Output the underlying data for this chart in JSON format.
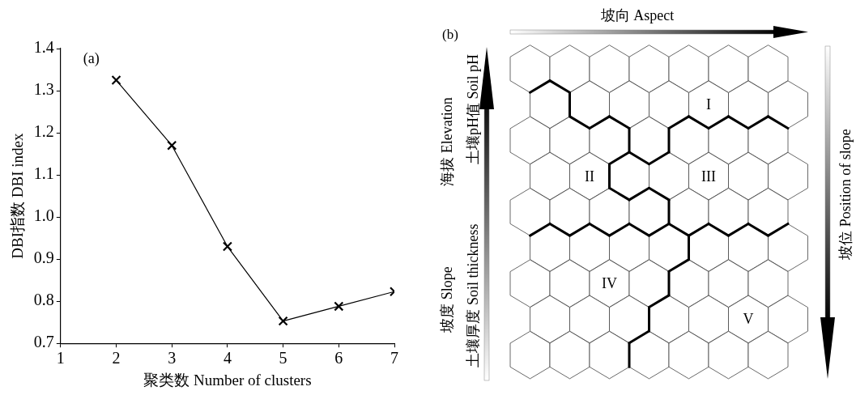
{
  "chart_data": [
    {
      "type": "line",
      "title": "(a)",
      "xlabel": "聚类数 Number of clusters",
      "ylabel": "DBI指数 DBI index",
      "x": [
        2,
        3,
        4,
        5,
        6,
        7
      ],
      "series": [
        {
          "color": "#000000",
          "values": [
            1.325,
            1.17,
            0.93,
            0.753,
            0.788,
            0.823
          ]
        }
      ],
      "xlim": [
        1,
        7
      ],
      "xticks": [
        1,
        2,
        3,
        4,
        5,
        6,
        7
      ],
      "ylim": [
        0.7,
        1.4
      ],
      "yticks": [
        {
          "value": 0.7,
          "label": "0.7"
        },
        {
          "value": 0.8,
          "label": "0.8"
        },
        {
          "value": 0.9,
          "label": "0.9"
        },
        {
          "value": 1.0,
          "label": "1.0"
        },
        {
          "value": 1.1,
          "label": "1.1"
        },
        {
          "value": 1.2,
          "label": "1.2"
        },
        {
          "value": 1.3,
          "label": "1.3"
        },
        {
          "value": 1.4,
          "label": "1.4"
        }
      ],
      "marker": "cross",
      "line_style": "solid",
      "legend": false,
      "grid": false
    },
    {
      "type": "other",
      "title": "(b)",
      "annotations": [
        "坡向 Aspect",
        "海拔 Elevation",
        "土壤pH值 Soil pH",
        "坡度 Slope",
        "土壤厚度 Soil thickness",
        "坡位 Position of slope",
        "I",
        "II",
        "III",
        "IV",
        "V"
      ]
    }
  ]
}
